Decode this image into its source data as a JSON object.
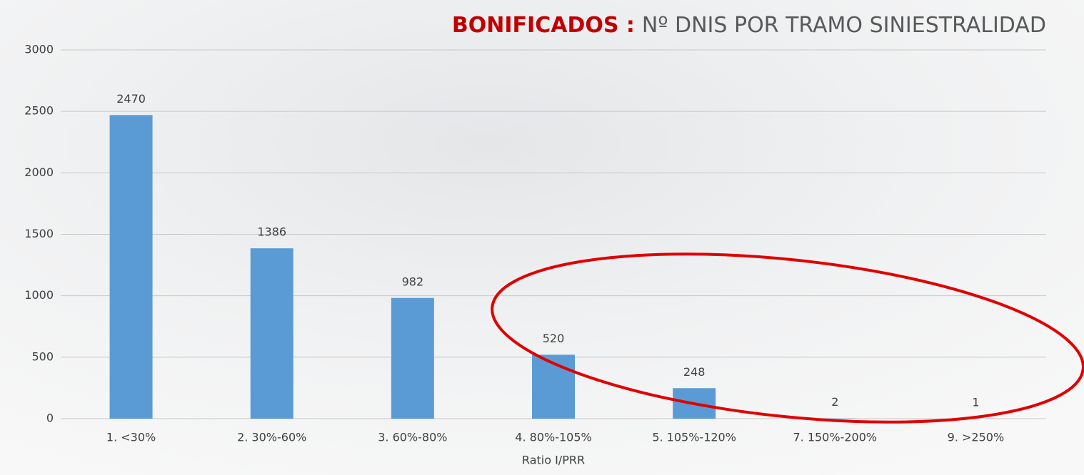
{
  "chart_data": {
    "type": "bar",
    "title": [
      "BONIFICADOS :",
      "Nº DNIS POR TRAMO SINIESTRALIDAD"
    ],
    "x_label": "Ratio I/PRR",
    "categories": [
      "1. <30%",
      "2. 30%-60%",
      "3. 60%-80%",
      "4. 80%-105%",
      "5. 105%-120%",
      "7. 150%-200%",
      "9. >250%"
    ],
    "values": [
      2470,
      1386,
      982,
      520,
      248,
      2,
      1
    ],
    "color": "#5b9bd5",
    "ylim": [
      0,
      3000
    ],
    "yticks": [
      0,
      500,
      1000,
      1500,
      2000,
      2500,
      3000
    ],
    "grid": true
  }
}
